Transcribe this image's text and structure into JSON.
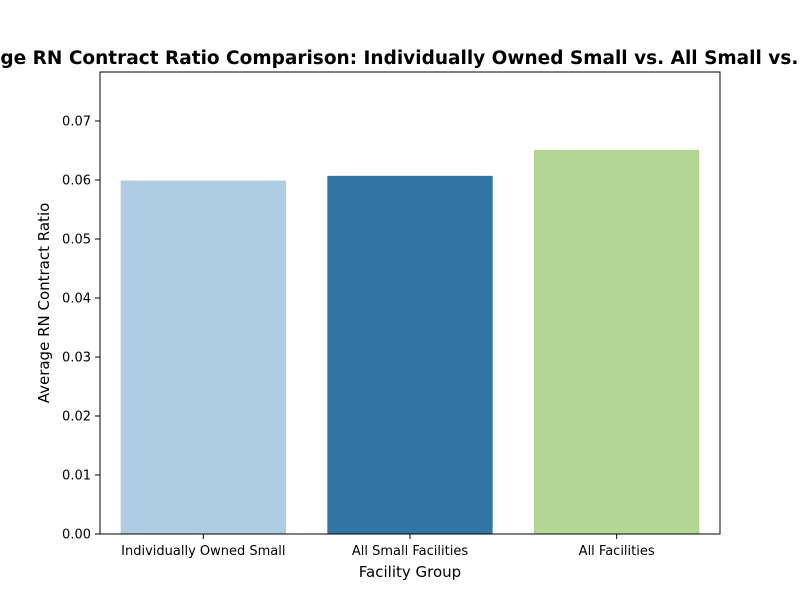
{
  "chart_data": {
    "type": "bar",
    "title": "Average RN Contract Ratio Comparison: Individually Owned Small vs. All Small vs. Overall",
    "xlabel": "Facility Group",
    "ylabel": "Average RN Contract Ratio",
    "categories": [
      "Individually Owned Small",
      "All Small Facilities",
      "All Facilities"
    ],
    "values": [
      0.0599,
      0.0607,
      0.0651
    ],
    "colors": [
      "#afcde0",
      "#3175a4",
      "#b4d695"
    ],
    "ylim": [
      0,
      0.0783
    ],
    "yticks": [
      0.0,
      0.01,
      0.02,
      0.03,
      0.04,
      0.05,
      0.06,
      0.07
    ],
    "ytick_labels": [
      "0.00",
      "0.01",
      "0.02",
      "0.03",
      "0.04",
      "0.05",
      "0.06",
      "0.07"
    ],
    "grid": false,
    "legend": "none"
  }
}
